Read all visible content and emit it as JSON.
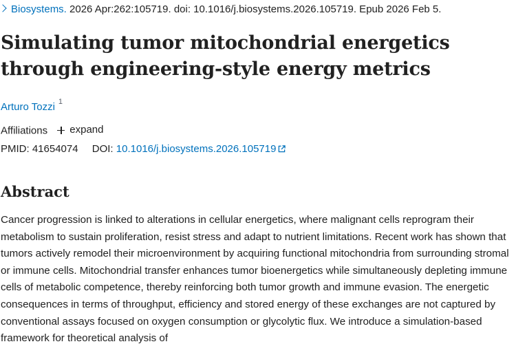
{
  "citation": {
    "journal": "Biosystems.",
    "details": " 2026 Apr:262:105719. doi: 10.1016/j.biosystems.2026.105719. Epub 2026 Feb 5."
  },
  "article": {
    "title": "Simulating tumor mitochondrial energetics through engineering-style energy metrics"
  },
  "authors": [
    {
      "name": "Arturo Tozzi",
      "affiliation_ref": "1"
    }
  ],
  "affiliations": {
    "label": "Affiliations",
    "expand_label": "expand"
  },
  "identifiers": {
    "pmid_label": "PMID:",
    "pmid": "41654074",
    "doi_label": "DOI:",
    "doi": "10.1016/j.biosystems.2026.105719"
  },
  "abstract": {
    "heading": "Abstract",
    "text": "Cancer progression is linked to alterations in cellular energetics, where malignant cells reprogram their metabolism to sustain proliferation, resist stress and adapt to nutrient limitations. Recent work has shown that tumors actively remodel their microenvironment by acquiring functional mitochondria from surrounding stromal or immune cells. Mitochondrial transfer enhances tumor bioenergetics while simultaneously depleting immune cells of metabolic competence, thereby reinforcing both tumor growth and immune evasion. The energetic consequences in terms of throughput, efficiency and stored energy of these exchanges are not captured by conventional assays focused on oxygen consumption or glycolytic flux. We introduce a simulation-based framework for theoretical analysis of"
  },
  "colors": {
    "link": "#0071bc",
    "text": "#212121"
  },
  "icons": {
    "journal_chevron": "chevron-right-icon",
    "expand": "plus-icon",
    "doi_external": "external-link-icon"
  }
}
